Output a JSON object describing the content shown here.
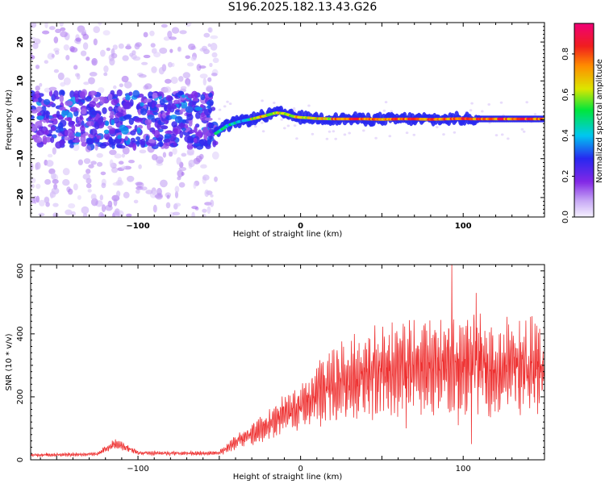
{
  "title": "S196.2025.182.13.43.G26",
  "chart_data": [
    {
      "type": "heatmap",
      "xlabel": "Height of straight line (km)",
      "ylabel": "Frequency (Hz)",
      "xlim": [
        -166,
        150
      ],
      "ylim": [
        -25,
        25
      ],
      "x_ticks": [
        -100,
        0,
        100
      ],
      "y_ticks": [
        -20,
        -10,
        0,
        10,
        20
      ],
      "colorbar": {
        "label": "Normalized spectral amplitude",
        "range": [
          0,
          0.95
        ],
        "ticks": [
          0.0,
          0.2,
          0.4,
          0.6,
          0.8
        ]
      },
      "ridge": {
        "x": [
          -52,
          -45,
          -38,
          -30,
          -22,
          -15,
          -10,
          -4,
          0,
          5,
          10,
          15,
          20,
          25,
          30,
          40,
          50,
          60,
          70,
          80,
          90,
          100,
          105,
          110,
          120,
          130,
          140,
          150
        ],
        "y": [
          -3.5,
          -1.5,
          -0.5,
          0.2,
          1,
          1.8,
          1.6,
          0.8,
          0.6,
          0.5,
          0.3,
          0.3,
          0.2,
          0.2,
          0.2,
          0.2,
          0.1,
          0.2,
          0.2,
          0.1,
          0.2,
          0.3,
          0.2,
          0.2,
          0.2,
          0.2,
          0.2,
          0.2
        ]
      }
    },
    {
      "type": "line",
      "xlabel": "Height of straight line (km)",
      "ylabel": "SNR (10 * v/v)",
      "xlim": [
        -166,
        150
      ],
      "ylim": [
        0,
        620
      ],
      "x_ticks": [
        -100,
        0,
        100
      ],
      "y_ticks": [
        0,
        200,
        400,
        600
      ],
      "series": [
        {
          "color": "#ee3030",
          "trend_x": [
            -166,
            -125,
            -115,
            -110,
            -100,
            -60,
            -50,
            -40,
            -30,
            -20,
            -10,
            0,
            10,
            20,
            30,
            40,
            50,
            60,
            70,
            80,
            90,
            100,
            110,
            120,
            130,
            140,
            150
          ],
          "trend_y": [
            15,
            18,
            50,
            45,
            22,
            20,
            22,
            55,
            80,
            110,
            145,
            165,
            205,
            235,
            255,
            270,
            280,
            285,
            290,
            295,
            300,
            300,
            305,
            280,
            300,
            300,
            300
          ],
          "spikes": [
            {
              "x": 65,
              "y": 100
            },
            {
              "x": 93,
              "y": 620
            },
            {
              "x": 97,
              "y": 110
            },
            {
              "x": 105,
              "y": 50
            },
            {
              "x": 108,
              "y": 530
            }
          ]
        }
      ]
    }
  ]
}
